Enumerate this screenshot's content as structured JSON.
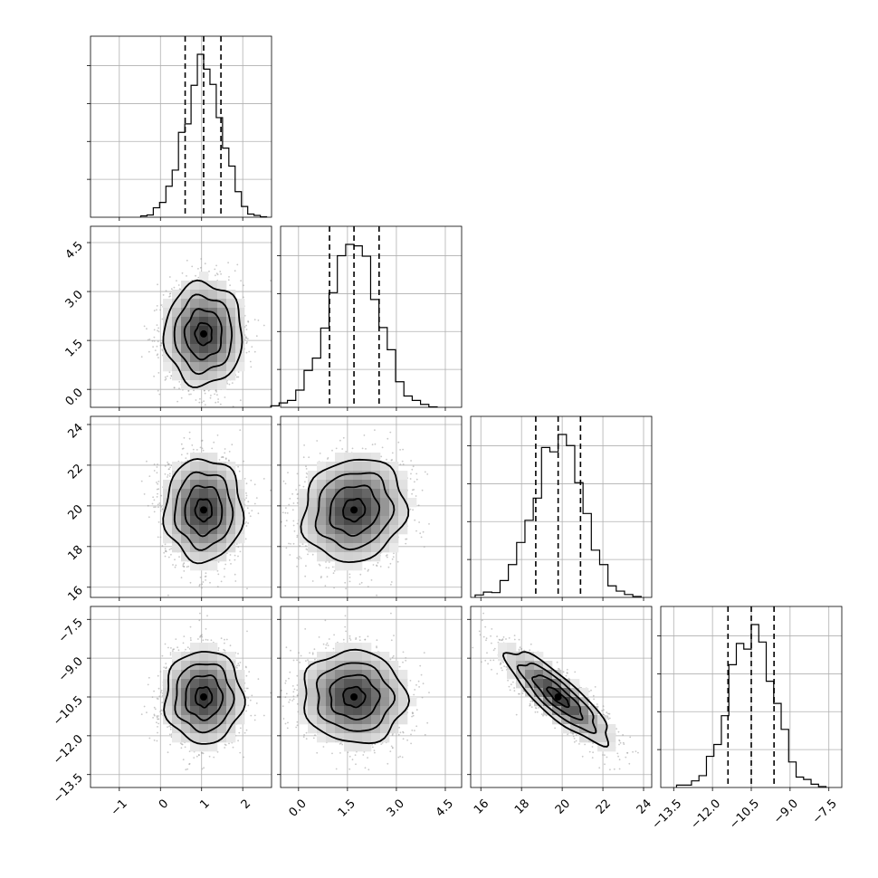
{
  "chart_data": {
    "type": "corner",
    "parameters": [
      {
        "ticks": [
          -1,
          0,
          1,
          2
        ],
        "tick_labels": [
          "−1",
          "0",
          "1",
          "2"
        ],
        "range": [
          -1.7,
          2.7
        ],
        "mean": 1.05,
        "std": 0.45,
        "quantiles": [
          0.6,
          1.05,
          1.47
        ]
      },
      {
        "ticks": [
          0.0,
          1.5,
          3.0,
          4.5
        ],
        "tick_labels": [
          "0.0",
          "1.5",
          "3.0",
          "4.5"
        ],
        "range": [
          -0.55,
          5.0
        ],
        "mean": 1.7,
        "std": 0.75,
        "quantiles": [
          0.95,
          1.7,
          2.47
        ]
      },
      {
        "ticks": [
          16,
          18,
          20,
          22,
          24
        ],
        "tick_labels": [
          "16",
          "18",
          "20",
          "22",
          "24"
        ],
        "range": [
          15.5,
          24.4
        ],
        "mean": 19.8,
        "std": 1.2,
        "quantiles": [
          18.7,
          19.8,
          20.9
        ]
      },
      {
        "ticks": [
          -13.5,
          -12.0,
          -10.5,
          -9.0,
          -7.5
        ],
        "tick_labels": [
          "−13.5",
          "−12.0",
          "−10.5",
          "−9.0",
          "−7.5"
        ],
        "range": [
          -14.0,
          -7.0
        ],
        "mean": -10.5,
        "std": 0.85,
        "quantiles": [
          -11.4,
          -10.5,
          -9.62
        ]
      }
    ],
    "correlations": [
      [
        1,
        0,
        0,
        0
      ],
      [
        0,
        1,
        0.1,
        -0.05
      ],
      [
        0,
        0.1,
        1,
        -0.85
      ],
      [
        0,
        -0.05,
        -0.85,
        1
      ]
    ],
    "hist_bins": 20,
    "grid": true
  }
}
